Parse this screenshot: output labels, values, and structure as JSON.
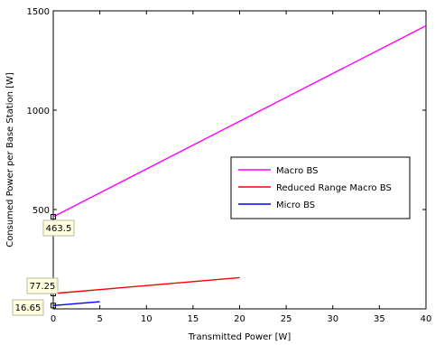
{
  "chart_data": {
    "type": "line",
    "xlabel": "Transmitted Power [W]",
    "ylabel": "Consumed Power per Base Station [W]",
    "xlim": [
      0,
      40
    ],
    "ylim": [
      0,
      1500
    ],
    "xticks": [
      0,
      5,
      10,
      15,
      20,
      25,
      30,
      35,
      40
    ],
    "yticks": [
      500,
      1000,
      1500
    ],
    "grid": false,
    "legend_placement": "right",
    "series": [
      {
        "name": "Macro BS",
        "color": "#ff00ff",
        "x": [
          0,
          40
        ],
        "y": [
          463.5,
          1425
        ]
      },
      {
        "name": "Reduced Range Macro BS",
        "color": "#ff0000",
        "x": [
          0,
          20
        ],
        "y": [
          77.25,
          157
        ]
      },
      {
        "name": "Micro BS",
        "color": "#0000ff",
        "x": [
          0,
          5
        ],
        "y": [
          16.65,
          36
        ]
      }
    ],
    "annotations": [
      {
        "label": "463.5",
        "x": 0,
        "y": 463.5,
        "series": "Macro BS"
      },
      {
        "label": "77.25",
        "x": 0,
        "y": 77.25,
        "series": "Reduced Range Macro BS"
      },
      {
        "label": "16.65",
        "x": 0,
        "y": 16.65,
        "series": "Micro BS"
      }
    ]
  }
}
